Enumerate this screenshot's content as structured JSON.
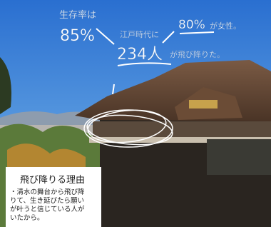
{
  "annotations": {
    "survival_label": "生存率は",
    "survival_rate": "85%",
    "era_label": "江戸時代に",
    "jumpers": "234人",
    "jumped": "が飛び降りた。",
    "female_rate": "80%",
    "female_label": "が女性。"
  },
  "reason_box": {
    "title": "飛び降りる理由",
    "lines": [
      "・清水の舞台から飛び降",
      "りて、生き延びたら願い",
      "が叶うと信じている人が",
      "いたから。"
    ]
  }
}
